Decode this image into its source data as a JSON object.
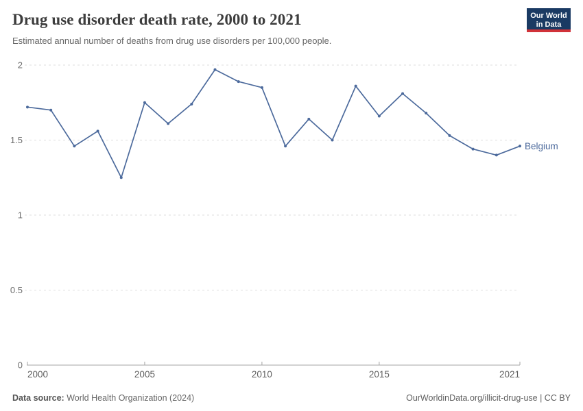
{
  "header": {
    "title": "Drug use disorder death rate, 2000 to 2021",
    "subtitle": "Estimated annual number of deaths from drug use disorders per 100,000 people.",
    "logo_line1": "Our World",
    "logo_line2": "in Data"
  },
  "chart_data": {
    "type": "line",
    "title": "Drug use disorder death rate, 2000 to 2021",
    "xlabel": "",
    "ylabel": "",
    "x": [
      2000,
      2001,
      2002,
      2003,
      2004,
      2005,
      2006,
      2007,
      2008,
      2009,
      2010,
      2011,
      2012,
      2013,
      2014,
      2015,
      2016,
      2017,
      2018,
      2019,
      2020,
      2021
    ],
    "series": [
      {
        "name": "Belgium",
        "values": [
          1.72,
          1.7,
          1.46,
          1.56,
          1.25,
          1.75,
          1.61,
          1.74,
          1.97,
          1.89,
          1.85,
          1.46,
          1.64,
          1.5,
          1.86,
          1.66,
          1.81,
          1.68,
          1.53,
          1.44,
          1.4,
          1.46
        ]
      }
    ],
    "ylim": [
      0,
      2
    ],
    "yticks": [
      0,
      0.5,
      1,
      1.5,
      2
    ],
    "ytick_labels": [
      "0",
      "0.5",
      "1",
      "1.5",
      "2"
    ],
    "xticks": [
      2000,
      2005,
      2010,
      2015,
      2021
    ],
    "grid": "horizontal-dashed",
    "legend": "entity label at line end, right side"
  },
  "footer": {
    "source_label": "Data source:",
    "source_value": "World Health Organization (2024)",
    "credit": "OurWorldinData.org/illicit-drug-use | CC BY"
  },
  "colors": {
    "line": "#4c6a9c",
    "entity_label": "#4c6a9c",
    "grid": "#dcdcdc",
    "axis": "#a3a3a3",
    "y_tick_label": "#6e6e6e",
    "x_tick_label": "#5f5f5f",
    "title": "#3d3d3d",
    "subtitle": "#666666",
    "logo_bg": "#1a3a63",
    "logo_accent": "#d13239"
  }
}
